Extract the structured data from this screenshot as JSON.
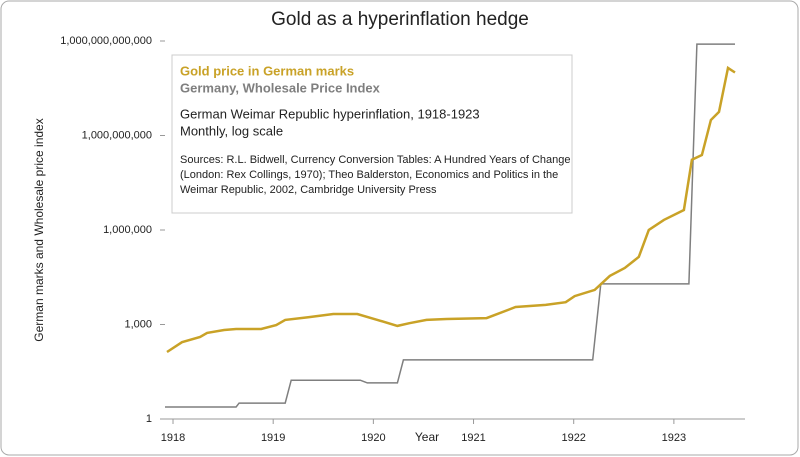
{
  "chart_data": {
    "type": "line",
    "title": "Gold as a hyperinflation hedge",
    "xlabel": "Year",
    "ylabel": "German marks and Wholesale price index",
    "log_scale": "y",
    "xlim": [
      1917.92,
      1923.71
    ],
    "xticks": [
      1918,
      1919,
      1920,
      1921,
      1922,
      1923
    ],
    "ylim": [
      1,
      1000000000000
    ],
    "yticks": [
      1,
      {
        "value": 1000,
        "label": "1,000"
      },
      {
        "value": 1000000,
        "label": "1,000,000"
      },
      {
        "value": 1000000000,
        "label": "1,000,000,000"
      },
      {
        "value": 1000000000000,
        "label": "1,000,000,000,000"
      }
    ],
    "notes": [
      "German Weimar Republic hyperinflation, 1918-1923",
      "Monthly, log scale"
    ],
    "sources": [
      "Sources: R.L. Bidwell, Currency Conversion Tables: A Hundred Years of Change",
      "(London: Rex Collings, 1970); Theo Balderston, Economics and Politics in the",
      "Weimar Republic, 2002, Cambridge University Press"
    ],
    "series": [
      {
        "name": "Gold price in German marks",
        "color": "#c9a227",
        "x": [
          1917.94,
          1918.09,
          1918.27,
          1918.34,
          1918.51,
          1918.63,
          1918.88,
          1919.03,
          1919.12,
          1919.35,
          1919.6,
          1919.84,
          1920.04,
          1920.24,
          1920.36,
          1920.53,
          1920.73,
          1921.13,
          1921.42,
          1921.72,
          1921.92,
          1922.01,
          1922.21,
          1922.36,
          1922.51,
          1922.65,
          1922.75,
          1922.9,
          1923.1,
          1923.18,
          1923.28,
          1923.37,
          1923.45,
          1923.54,
          1923.61
        ],
        "values": [
          134,
          275,
          400,
          540,
          670,
          720,
          720,
          960,
          1400,
          1700,
          2150,
          2150,
          1400,
          900,
          1100,
          1400,
          1500,
          1600,
          3600,
          4200,
          5100,
          8000,
          12500,
          35000,
          62000,
          140000,
          1000000,
          2100000,
          4300000,
          170000000,
          240000000,
          3100000000,
          5600000000,
          140000000000,
          100000000000
        ]
      },
      {
        "name": "Germany, Wholesale Price Index",
        "color": "#7f7f7f",
        "x": [
          1917.92,
          1918.63,
          1918.66,
          1919.12,
          1919.18,
          1919.87,
          1919.94,
          1920.24,
          1920.3,
          1922.19,
          1922.27,
          1923.15,
          1923.23,
          1923.61
        ],
        "values": [
          2.4,
          2.4,
          3.2,
          3.2,
          17,
          17,
          14,
          14,
          75,
          75,
          19500,
          19500,
          800000000000,
          800000000000
        ]
      }
    ]
  }
}
